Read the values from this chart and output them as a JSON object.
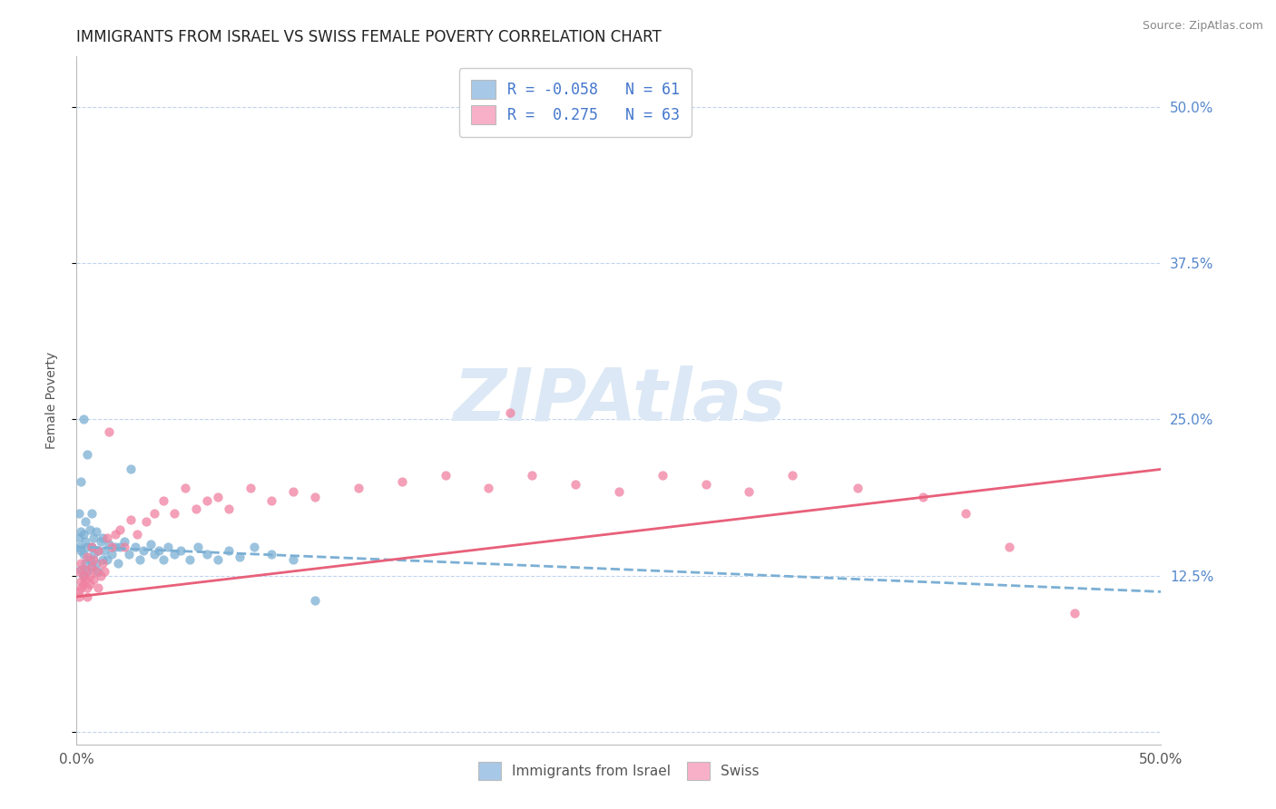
{
  "title": "IMMIGRANTS FROM ISRAEL VS SWISS FEMALE POVERTY CORRELATION CHART",
  "source": "Source: ZipAtlas.com",
  "ylabel": "Female Poverty",
  "xlim": [
    0.0,
    0.5
  ],
  "ylim": [
    -0.01,
    0.54
  ],
  "blue_R": -0.058,
  "blue_N": 61,
  "pink_R": 0.275,
  "pink_N": 63,
  "blue_scatter_color": "#7bafd4",
  "pink_scatter_color": "#f080a0",
  "blue_legend_color": "#a8c8e8",
  "pink_legend_color": "#f8b0c8",
  "trend_blue_color": "#7bafd4",
  "trend_pink_color": "#e8607a",
  "legend_R_color": "#4477cc",
  "watermark": "ZIPAtlas",
  "watermark_color": "#dce8f5",
  "background_color": "#ffffff",
  "grid_color": "#c0d4ee",
  "title_fontsize": 12,
  "blue_trend_x": [
    0.0,
    0.5
  ],
  "blue_trend_y": [
    0.148,
    0.112
  ],
  "pink_trend_x": [
    0.0,
    0.5
  ],
  "pink_trend_y": [
    0.108,
    0.21
  ],
  "blue_points_x": [
    0.001,
    0.001,
    0.001,
    0.002,
    0.002,
    0.002,
    0.002,
    0.003,
    0.003,
    0.003,
    0.003,
    0.004,
    0.004,
    0.004,
    0.005,
    0.005,
    0.005,
    0.006,
    0.006,
    0.007,
    0.007,
    0.007,
    0.008,
    0.008,
    0.009,
    0.009,
    0.01,
    0.01,
    0.011,
    0.012,
    0.012,
    0.013,
    0.014,
    0.015,
    0.016,
    0.018,
    0.019,
    0.02,
    0.022,
    0.024,
    0.025,
    0.027,
    0.029,
    0.031,
    0.034,
    0.036,
    0.038,
    0.04,
    0.042,
    0.045,
    0.048,
    0.052,
    0.056,
    0.06,
    0.065,
    0.07,
    0.075,
    0.082,
    0.09,
    0.1,
    0.11
  ],
  "blue_points_y": [
    0.148,
    0.155,
    0.175,
    0.13,
    0.145,
    0.16,
    0.2,
    0.125,
    0.142,
    0.158,
    0.25,
    0.135,
    0.152,
    0.168,
    0.128,
    0.148,
    0.222,
    0.138,
    0.162,
    0.132,
    0.148,
    0.175,
    0.142,
    0.155,
    0.135,
    0.16,
    0.128,
    0.145,
    0.152,
    0.138,
    0.155,
    0.145,
    0.138,
    0.15,
    0.142,
    0.148,
    0.135,
    0.148,
    0.152,
    0.142,
    0.21,
    0.148,
    0.138,
    0.145,
    0.15,
    0.142,
    0.145,
    0.138,
    0.148,
    0.142,
    0.145,
    0.138,
    0.148,
    0.142,
    0.138,
    0.145,
    0.14,
    0.148,
    0.142,
    0.138,
    0.105
  ],
  "pink_points_x": [
    0.001,
    0.001,
    0.001,
    0.002,
    0.002,
    0.002,
    0.003,
    0.003,
    0.004,
    0.004,
    0.005,
    0.005,
    0.005,
    0.006,
    0.006,
    0.007,
    0.007,
    0.008,
    0.008,
    0.009,
    0.01,
    0.01,
    0.011,
    0.012,
    0.013,
    0.014,
    0.015,
    0.016,
    0.018,
    0.02,
    0.022,
    0.025,
    0.028,
    0.032,
    0.036,
    0.04,
    0.045,
    0.05,
    0.055,
    0.06,
    0.065,
    0.07,
    0.08,
    0.09,
    0.1,
    0.11,
    0.13,
    0.15,
    0.17,
    0.19,
    0.21,
    0.23,
    0.25,
    0.27,
    0.29,
    0.31,
    0.33,
    0.36,
    0.39,
    0.41,
    0.43,
    0.46,
    0.2
  ],
  "pink_points_y": [
    0.112,
    0.128,
    0.108,
    0.12,
    0.135,
    0.115,
    0.125,
    0.118,
    0.122,
    0.13,
    0.115,
    0.14,
    0.108,
    0.125,
    0.118,
    0.132,
    0.148,
    0.122,
    0.138,
    0.128,
    0.115,
    0.145,
    0.125,
    0.135,
    0.128,
    0.155,
    0.24,
    0.148,
    0.158,
    0.162,
    0.148,
    0.17,
    0.158,
    0.168,
    0.175,
    0.185,
    0.175,
    0.195,
    0.178,
    0.185,
    0.188,
    0.178,
    0.195,
    0.185,
    0.192,
    0.188,
    0.195,
    0.2,
    0.205,
    0.195,
    0.205,
    0.198,
    0.192,
    0.205,
    0.198,
    0.192,
    0.205,
    0.195,
    0.188,
    0.175,
    0.148,
    0.095,
    0.255
  ]
}
